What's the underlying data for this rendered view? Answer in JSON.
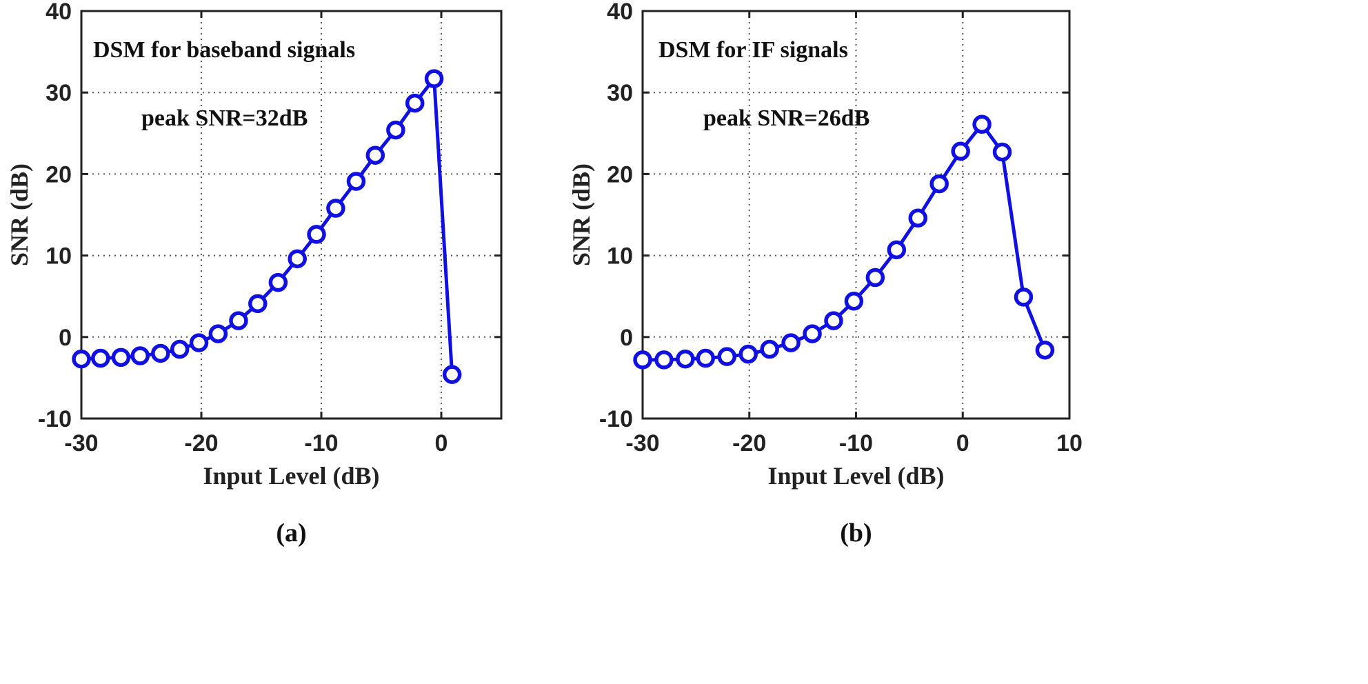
{
  "chart_data": [
    {
      "type": "line",
      "caption": "(a)",
      "annotations": [
        "DSM for baseband signals",
        "peak SNR=32dB"
      ],
      "xlabel": "Input Level (dB)",
      "ylabel": "SNR (dB)",
      "xlim": [
        -30,
        5
      ],
      "ylim": [
        -10,
        40
      ],
      "xticks": [
        -30,
        -20,
        -10,
        0
      ],
      "yticks": [
        -10,
        0,
        10,
        20,
        30,
        40
      ],
      "grid": true,
      "series": [
        {
          "color": "#1010e0",
          "marker": "circle",
          "x": [
            -30,
            -28.4,
            -26.7,
            -25.1,
            -23.4,
            -21.8,
            -20.2,
            -18.6,
            -16.9,
            -15.3,
            -13.6,
            -12.0,
            -10.4,
            -8.8,
            -7.1,
            -5.5,
            -3.8,
            -2.2,
            -0.6,
            0.9
          ],
          "y": [
            -2.7,
            -2.6,
            -2.5,
            -2.3,
            -2.0,
            -1.5,
            -0.7,
            0.4,
            2.0,
            4.1,
            6.7,
            9.6,
            12.6,
            15.8,
            19.1,
            22.3,
            25.4,
            28.7,
            31.7,
            -4.6
          ]
        }
      ]
    },
    {
      "type": "line",
      "caption": "(b)",
      "annotations": [
        "DSM for IF signals",
        "peak SNR=26dB"
      ],
      "xlabel": "Input Level (dB)",
      "ylabel": "SNR (dB)",
      "xlim": [
        -30,
        10
      ],
      "ylim": [
        -10,
        40
      ],
      "xticks": [
        -30,
        -20,
        -10,
        0,
        10
      ],
      "yticks": [
        -10,
        0,
        10,
        20,
        30,
        40
      ],
      "grid": true,
      "series": [
        {
          "color": "#1010e0",
          "marker": "circle",
          "x": [
            -30,
            -28.0,
            -26.0,
            -24.1,
            -22.1,
            -20.1,
            -18.1,
            -16.1,
            -14.1,
            -12.1,
            -10.2,
            -8.2,
            -6.2,
            -4.2,
            -2.2,
            -0.2,
            1.8,
            3.7,
            5.7,
            7.7
          ],
          "y": [
            -2.8,
            -2.8,
            -2.7,
            -2.6,
            -2.4,
            -2.1,
            -1.5,
            -0.7,
            0.4,
            2.0,
            4.4,
            7.3,
            10.7,
            14.6,
            18.8,
            22.8,
            26.1,
            22.7,
            4.9,
            -1.6
          ]
        }
      ]
    }
  ]
}
